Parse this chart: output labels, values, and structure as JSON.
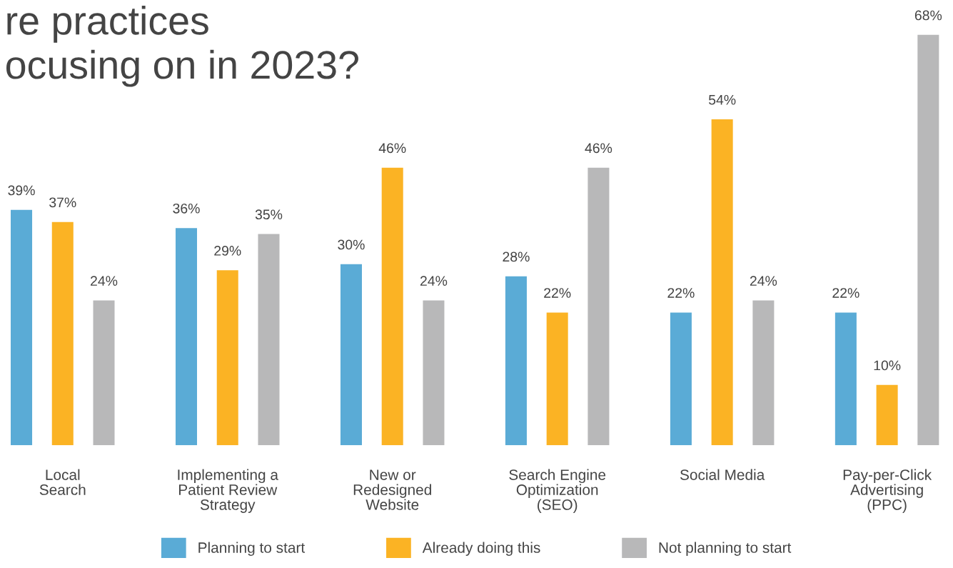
{
  "chart_data": {
    "type": "bar",
    "title": "re practices\nocusing on in 2023?",
    "categories": [
      "Local\nSearch",
      "Implementing a\nPatient Review\nStrategy",
      "New or\nRedesigned\nWebsite",
      "Search Engine\nOptimization\n(SEO)",
      "Social Media",
      "Pay-per-Click\nAdvertising\n(PPC)"
    ],
    "series": [
      {
        "name": "Planning to start",
        "color": "#5aabd6",
        "values": [
          39,
          36,
          30,
          28,
          22,
          22
        ],
        "value_labels": [
          "39%",
          "36%",
          "30%",
          "28%",
          "22%",
          "22%"
        ]
      },
      {
        "name": "Already doing this",
        "color": "#fbb324",
        "values": [
          37,
          29,
          46,
          22,
          54,
          10
        ],
        "value_labels": [
          "37%",
          "29%",
          "46%",
          "22%",
          "54%",
          "10%"
        ]
      },
      {
        "name": "Not planning to start",
        "color": "#b8b8b9",
        "values": [
          24,
          35,
          24,
          46,
          24,
          68
        ],
        "value_labels": [
          "24%",
          "35%",
          "24%",
          "46%",
          "24%",
          "68%"
        ]
      }
    ],
    "legend": "bottom",
    "grid": false
  }
}
